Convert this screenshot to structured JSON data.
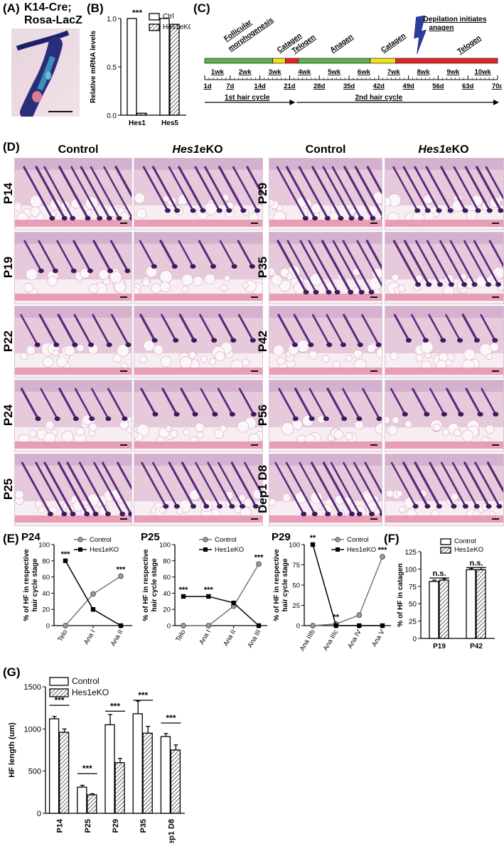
{
  "panelA": {
    "label": "(A)",
    "title_line1": "K14-Cre;",
    "title_line2": "Rosa-LacZ"
  },
  "panelB": {
    "label": "(B)",
    "chart_data": {
      "type": "bar",
      "categories": [
        "Hes1",
        "Hes5"
      ],
      "series": [
        {
          "name": "Ctrl",
          "values": [
            1.0,
            1.0
          ]
        },
        {
          "name": "Hes1eKO",
          "values": [
            0.02,
            0.94
          ]
        }
      ],
      "ylabel": "Relative mRNA levels",
      "ylim": [
        0,
        1.0
      ],
      "yticks": [
        "0.0",
        "0.5",
        "1.0"
      ],
      "annotations": [
        {
          "category": "Hes1",
          "text": "***"
        }
      ]
    }
  },
  "panelC": {
    "label": "(C)",
    "phases": [
      {
        "name": "Follicular morphogenesis",
        "color": "#5bb14a",
        "start": 1,
        "end": 17
      },
      {
        "name": "Catagen",
        "color": "#f2e01a",
        "start": 17,
        "end": 20
      },
      {
        "name": "Telogen",
        "color": "#e4262b",
        "start": 20,
        "end": 23
      },
      {
        "name": "Anagen",
        "color": "#5bb14a",
        "start": 23,
        "end": 40
      },
      {
        "name": "Catagen",
        "color": "#f2e01a",
        "start": 40,
        "end": 46
      },
      {
        "name": "Telogen",
        "color": "#e4262b",
        "start": 46,
        "end": 70
      }
    ],
    "callout": "Depilation initiates anagen",
    "callout_line1": "Depilation initiates",
    "callout_line2": "anagen",
    "weeks": [
      "1wk",
      "2wk",
      "3wk",
      "4wk",
      "5wk",
      "6wk",
      "7wk",
      "8wk",
      "9wk",
      "10wk"
    ],
    "days": [
      "1d",
      "7d",
      "14d",
      "21d",
      "28d",
      "35d",
      "42d",
      "49d",
      "56d",
      "63d",
      "70d"
    ],
    "cycle1": "1st  hair cycle",
    "cycle2": "2nd hair cycle"
  },
  "panelD": {
    "label": "(D)",
    "control": "Control",
    "ko_italic": "Hes1",
    "ko_rest": "eKO",
    "left_rows": [
      "P14",
      "P19",
      "P22",
      "P24",
      "P25"
    ],
    "right_rows": [
      "P29",
      "P35",
      "P42",
      "P56",
      "Dep1 D8"
    ]
  },
  "panelE": {
    "label": "(E)",
    "chart_data": [
      {
        "type": "line",
        "title": "P24",
        "categories": [
          "Telo",
          "Ana I",
          "Ana II"
        ],
        "ylabel": "% of HF in respective hair cycle stage",
        "ylim": [
          0,
          100
        ],
        "yticks": [
          "0",
          "20",
          "40",
          "60",
          "80",
          "100"
        ],
        "series": [
          {
            "name": "Control",
            "values": [
              0,
              39,
              61
            ]
          },
          {
            "name": "Hes1eKO",
            "values": [
              80,
              20,
              0
            ]
          }
        ],
        "annotations": [
          {
            "category": "Telo",
            "text": "***"
          },
          {
            "category": "Ana II",
            "text": "***"
          }
        ]
      },
      {
        "type": "line",
        "title": "P25",
        "categories": [
          "Telo",
          "Ana I",
          "Ana II",
          "Ana III"
        ],
        "ylabel": "% of HF in respective hair cycle stage",
        "ylim": [
          0,
          100
        ],
        "yticks": [
          "0",
          "20",
          "40",
          "60",
          "80",
          "100"
        ],
        "series": [
          {
            "name": "Control",
            "values": [
              0,
              0,
              24,
              76
            ]
          },
          {
            "name": "Hes1eKO",
            "values": [
              36,
              36,
              28,
              0
            ]
          }
        ],
        "annotations": [
          {
            "category": "Telo",
            "text": "***"
          },
          {
            "category": "Ana I",
            "text": "***"
          },
          {
            "category": "Ana III",
            "text": "***"
          }
        ]
      },
      {
        "type": "line",
        "title": "P29",
        "categories": [
          "Ana IIIb",
          "Ana IIIc",
          "Ana IV",
          "Ana V"
        ],
        "ylabel": "% of HF in respective hair cycle stage",
        "ylim": [
          0,
          100
        ],
        "yticks": [
          "0",
          "25",
          "50",
          "75",
          "100"
        ],
        "series": [
          {
            "name": "Control",
            "values": [
              0,
              2,
              13,
              85
            ]
          },
          {
            "name": "Hes1eKO",
            "values": [
              100,
              0,
              0,
              0
            ]
          }
        ],
        "annotations": [
          {
            "category": "Ana IIIb",
            "text": "**"
          },
          {
            "category": "Ana IIIc",
            "text": "**"
          },
          {
            "category": "Ana V",
            "text": "***"
          }
        ]
      }
    ]
  },
  "panelF": {
    "label": "(F)",
    "chart_data": {
      "type": "bar",
      "categories": [
        "P19",
        "P42"
      ],
      "series": [
        {
          "name": "Control",
          "values": [
            82,
            99
          ]
        },
        {
          "name": "Hes1eKO",
          "values": [
            84,
            99
          ]
        }
      ],
      "ylabel": "% of HF in catagen",
      "ylim": [
        0,
        125
      ],
      "yticks": [
        "0",
        "25",
        "50",
        "75",
        "100",
        "125"
      ],
      "annotations": [
        {
          "category": "P19",
          "text": "n.s."
        },
        {
          "category": "P42",
          "text": "n.s."
        }
      ]
    }
  },
  "panelG": {
    "label": "(G)",
    "chart_data": {
      "type": "bar",
      "categories": [
        "P14",
        "P25",
        "P29",
        "P35",
        "Dep1 D8"
      ],
      "series": [
        {
          "name": "Control",
          "values": [
            1120,
            310,
            1050,
            1180,
            910
          ]
        },
        {
          "name": "Hes1eKO",
          "values": [
            960,
            220,
            600,
            950,
            750
          ]
        }
      ],
      "ylabel": "HF length (um)",
      "ylim": [
        0,
        1500
      ],
      "yticks": [
        "0",
        "500",
        "1000",
        "1500"
      ],
      "annotations": [
        {
          "category": "P14",
          "text": "***"
        },
        {
          "category": "P25",
          "text": "***"
        },
        {
          "category": "P29",
          "text": "***"
        },
        {
          "category": "P35",
          "text": "***"
        },
        {
          "category": "Dep1 D8",
          "text": "***"
        }
      ]
    }
  }
}
